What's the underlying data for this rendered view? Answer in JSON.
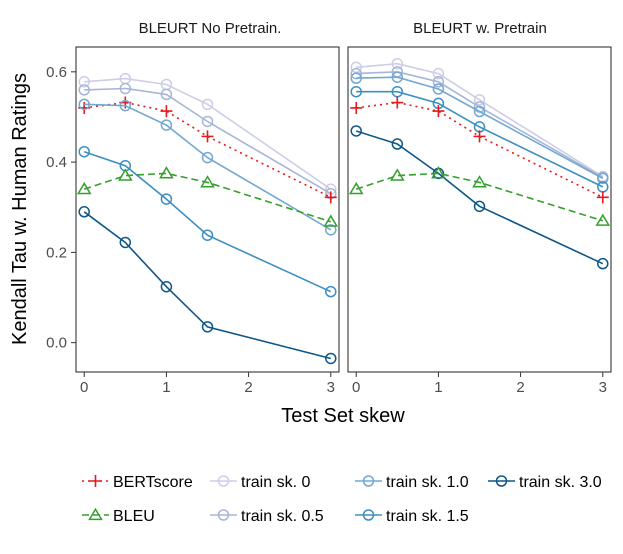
{
  "chart_data": {
    "type": "line",
    "xlabel": "Test Set skew",
    "ylabel": "Kendall Tau w. Human Ratings",
    "xlim": [
      -0.1,
      3.1
    ],
    "ylim": [
      -0.065,
      0.655
    ],
    "x": [
      0,
      0.5,
      1,
      1.5,
      3
    ],
    "x_ticks": [
      0,
      1,
      2,
      3
    ],
    "x_tick_labels": [
      "0",
      "1",
      "2",
      "3"
    ],
    "y_ticks": [
      0.0,
      0.2,
      0.4,
      0.6
    ],
    "y_tick_labels": [
      "0.0",
      "0.2",
      "0.4",
      "0.6"
    ],
    "grid": false,
    "legend": {
      "position": "bottom",
      "items": [
        {
          "key": "bertscore",
          "label": "BERTscore"
        },
        {
          "key": "train0",
          "label": "train sk. 0"
        },
        {
          "key": "train10",
          "label": "train sk. 1.0"
        },
        {
          "key": "train30",
          "label": "train sk. 3.0"
        },
        {
          "key": "bleu",
          "label": "BLEU"
        },
        {
          "key": "train05",
          "label": "train sk. 0.5"
        },
        {
          "key": "train15",
          "label": "train sk. 1.5"
        }
      ]
    },
    "styles": {
      "bertscore": {
        "color": "#e41a1c",
        "dash": "dotted",
        "marker": "plus"
      },
      "bleu": {
        "color": "#33a02c",
        "dash": "dashed",
        "marker": "triangle"
      },
      "train0": {
        "color": "#cdcde6",
        "dash": "solid",
        "marker": "circle"
      },
      "train05": {
        "color": "#a6b6d8",
        "dash": "solid",
        "marker": "circle"
      },
      "train10": {
        "color": "#72a8d3",
        "dash": "solid",
        "marker": "circle"
      },
      "train15": {
        "color": "#3d8fc2",
        "dash": "solid",
        "marker": "circle"
      },
      "train30": {
        "color": "#0f5787",
        "dash": "solid",
        "marker": "circle"
      }
    },
    "panels": [
      {
        "title": "BLEURT No Pretrain.",
        "series": [
          {
            "key": "train0",
            "values": [
              0.578,
              0.585,
              0.572,
              0.528,
              0.34
            ]
          },
          {
            "key": "train05",
            "values": [
              0.56,
              0.563,
              0.55,
              0.49,
              0.33
            ]
          },
          {
            "key": "bertscore",
            "values": [
              0.52,
              0.532,
              0.513,
              0.457,
              0.322
            ]
          },
          {
            "key": "train10",
            "values": [
              0.528,
              0.525,
              0.482,
              0.41,
              0.25
            ]
          },
          {
            "key": "train15",
            "values": [
              0.423,
              0.392,
              0.318,
              0.238,
              0.113
            ]
          },
          {
            "key": "bleu",
            "values": [
              0.34,
              0.37,
              0.375,
              0.355,
              0.268
            ]
          },
          {
            "key": "train30",
            "values": [
              0.29,
              0.222,
              0.124,
              0.035,
              -0.035
            ]
          }
        ]
      },
      {
        "title": "BLEURT w. Pretrain",
        "series": [
          {
            "key": "train0",
            "values": [
              0.61,
              0.618,
              0.596,
              0.538,
              0.368
            ]
          },
          {
            "key": "train05",
            "values": [
              0.596,
              0.6,
              0.578,
              0.522,
              0.366
            ]
          },
          {
            "key": "train10",
            "values": [
              0.586,
              0.588,
              0.562,
              0.512,
              0.364
            ]
          },
          {
            "key": "train15",
            "values": [
              0.556,
              0.556,
              0.53,
              0.478,
              0.345
            ]
          },
          {
            "key": "bertscore",
            "values": [
              0.52,
              0.532,
              0.513,
              0.457,
              0.322
            ]
          },
          {
            "key": "train30",
            "values": [
              0.469,
              0.44,
              0.375,
              0.302,
              0.175
            ]
          },
          {
            "key": "bleu",
            "values": [
              0.34,
              0.37,
              0.375,
              0.355,
              0.27
            ]
          }
        ]
      }
    ]
  }
}
